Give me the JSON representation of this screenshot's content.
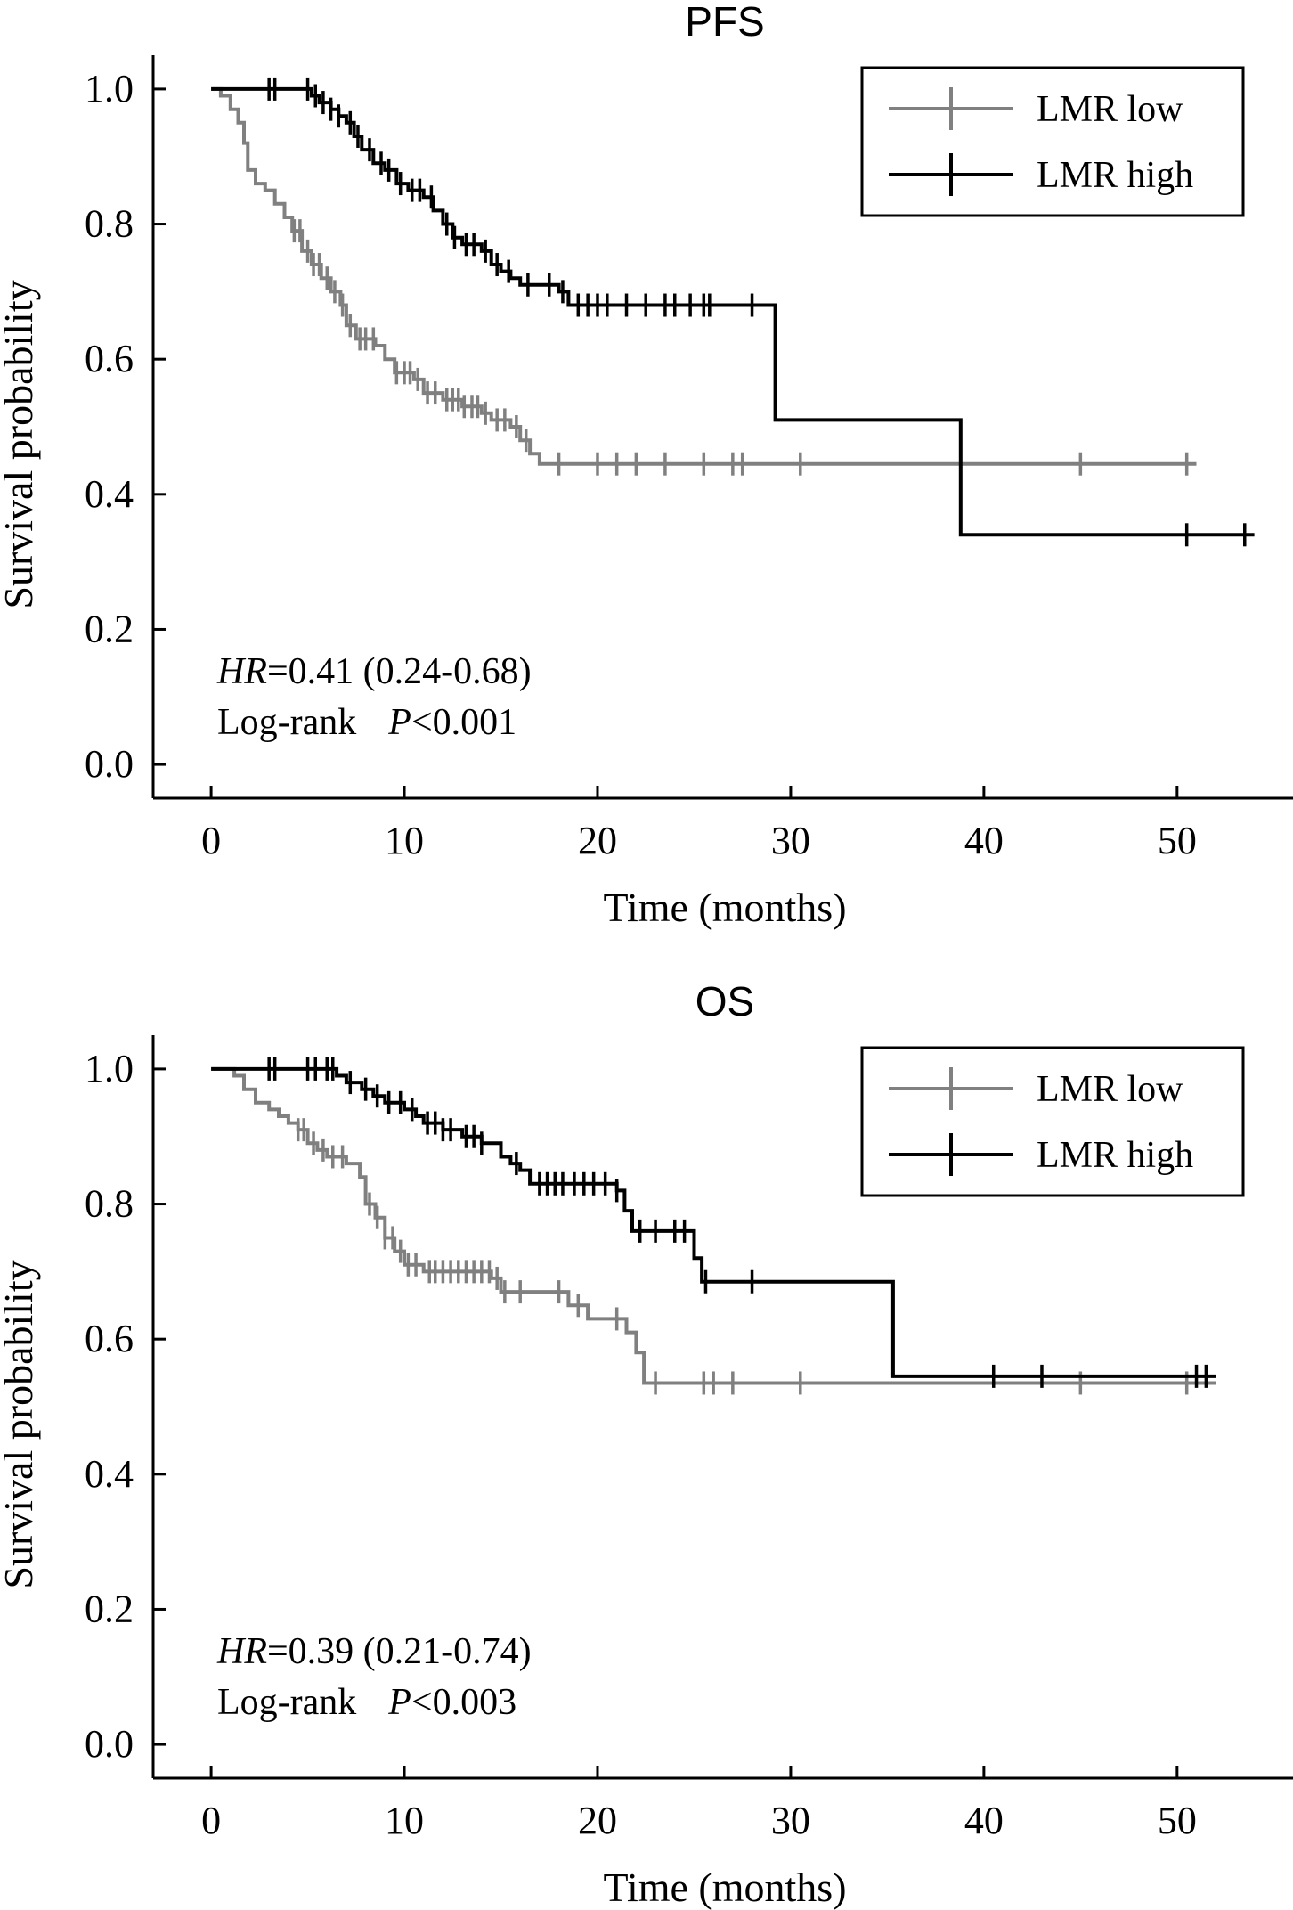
{
  "chart_data": [
    {
      "type": "line",
      "subtype": "kaplan-meier",
      "title": "PFS",
      "xlabel": "Time (months)",
      "ylabel": "Survival probability",
      "xlim": [
        -3,
        56
      ],
      "ylim": [
        -0.05,
        1.05
      ],
      "xticks": [
        "0",
        "10",
        "20",
        "30",
        "40",
        "50"
      ],
      "yticks": [
        "0.0",
        "0.2",
        "0.4",
        "0.6",
        "0.8",
        "1.0"
      ],
      "legend": {
        "position": "top-right",
        "entries": [
          "LMR low",
          "LMR high"
        ]
      },
      "annotation": {
        "hr_label": "HR",
        "hr_value": "=0.41 (0.24-0.68)",
        "logrank_label": "Log-rank",
        "p_label": "P",
        "p_value": "<0.001"
      },
      "series": [
        {
          "name": "LMR low",
          "color": "#808080",
          "steps": [
            [
              0,
              1.0
            ],
            [
              0.5,
              0.99
            ],
            [
              1,
              0.97
            ],
            [
              1.4,
              0.95
            ],
            [
              1.7,
              0.92
            ],
            [
              1.9,
              0.88
            ],
            [
              2.3,
              0.86
            ],
            [
              2.8,
              0.85
            ],
            [
              3.3,
              0.83
            ],
            [
              3.8,
              0.81
            ],
            [
              4.2,
              0.79
            ],
            [
              4.7,
              0.76
            ],
            [
              5.2,
              0.74
            ],
            [
              5.7,
              0.72
            ],
            [
              6.2,
              0.7
            ],
            [
              6.7,
              0.68
            ],
            [
              7.0,
              0.65
            ],
            [
              7.5,
              0.63
            ],
            [
              8.5,
              0.62
            ],
            [
              9.0,
              0.6
            ],
            [
              9.5,
              0.58
            ],
            [
              10.5,
              0.57
            ],
            [
              11.0,
              0.55
            ],
            [
              12.0,
              0.54
            ],
            [
              13.0,
              0.53
            ],
            [
              14.0,
              0.52
            ],
            [
              14.5,
              0.51
            ],
            [
              15.5,
              0.5
            ],
            [
              16.0,
              0.48
            ],
            [
              16.5,
              0.46
            ],
            [
              17.0,
              0.445
            ],
            [
              51,
              0.445
            ]
          ],
          "censor": [
            4.3,
            4.6,
            5.0,
            5.3,
            5.6,
            6.0,
            6.4,
            6.8,
            7.2,
            7.7,
            8.0,
            8.4,
            9.6,
            10.0,
            10.3,
            10.7,
            11.2,
            11.6,
            12.2,
            12.5,
            12.8,
            13.1,
            13.5,
            13.8,
            14.2,
            14.8,
            15.2,
            15.8,
            16.3,
            18.0,
            20.0,
            21.0,
            22.0,
            23.5,
            25.5,
            27.0,
            27.5,
            30.5,
            45.0,
            50.5
          ]
        },
        {
          "name": "LMR high",
          "color": "#000000",
          "steps": [
            [
              0,
              1.0
            ],
            [
              5.2,
              0.99
            ],
            [
              5.6,
              0.98
            ],
            [
              6.2,
              0.97
            ],
            [
              6.6,
              0.96
            ],
            [
              7.0,
              0.95
            ],
            [
              7.4,
              0.93
            ],
            [
              7.8,
              0.91
            ],
            [
              8.4,
              0.89
            ],
            [
              9.0,
              0.88
            ],
            [
              9.6,
              0.86
            ],
            [
              10.2,
              0.85
            ],
            [
              11.0,
              0.84
            ],
            [
              11.5,
              0.82
            ],
            [
              12.0,
              0.8
            ],
            [
              12.5,
              0.78
            ],
            [
              13.0,
              0.77
            ],
            [
              14.0,
              0.76
            ],
            [
              14.5,
              0.74
            ],
            [
              15.0,
              0.73
            ],
            [
              15.5,
              0.72
            ],
            [
              16.0,
              0.71
            ],
            [
              18.0,
              0.7
            ],
            [
              18.5,
              0.68
            ],
            [
              29.2,
              0.68
            ],
            [
              29.2,
              0.51
            ],
            [
              38.8,
              0.51
            ],
            [
              38.8,
              0.34
            ],
            [
              54,
              0.34
            ]
          ],
          "censor": [
            3.0,
            3.3,
            5.0,
            5.4,
            5.8,
            6.2,
            6.6,
            7.2,
            7.6,
            8.2,
            8.8,
            9.2,
            9.8,
            10.4,
            10.8,
            11.4,
            12.2,
            12.6,
            13.2,
            13.6,
            14.2,
            14.8,
            15.4,
            16.4,
            17.5,
            18.2,
            19.0,
            19.5,
            20.0,
            20.5,
            21.5,
            22.5,
            23.5,
            24.0,
            24.8,
            25.5,
            25.8,
            28.0,
            50.5,
            53.5
          ]
        }
      ]
    },
    {
      "type": "line",
      "subtype": "kaplan-meier",
      "title": "OS",
      "xlabel": "Time (months)",
      "ylabel": "Survival probability",
      "xlim": [
        -3,
        56
      ],
      "ylim": [
        -0.05,
        1.05
      ],
      "xticks": [
        "0",
        "10",
        "20",
        "30",
        "40",
        "50"
      ],
      "yticks": [
        "0.0",
        "0.2",
        "0.4",
        "0.6",
        "0.8",
        "1.0"
      ],
      "legend": {
        "position": "top-right",
        "entries": [
          "LMR low",
          "LMR high"
        ]
      },
      "annotation": {
        "hr_label": "HR",
        "hr_value": "=0.39 (0.21-0.74)",
        "logrank_label": "Log-rank",
        "p_label": "P",
        "p_value": "<0.003"
      },
      "series": [
        {
          "name": "LMR low",
          "color": "#808080",
          "steps": [
            [
              0,
              1.0
            ],
            [
              1.2,
              0.99
            ],
            [
              1.7,
              0.97
            ],
            [
              2.3,
              0.95
            ],
            [
              3.0,
              0.94
            ],
            [
              3.5,
              0.93
            ],
            [
              4.0,
              0.92
            ],
            [
              4.5,
              0.91
            ],
            [
              5.0,
              0.89
            ],
            [
              5.5,
              0.88
            ],
            [
              6.0,
              0.87
            ],
            [
              7.0,
              0.86
            ],
            [
              7.7,
              0.84
            ],
            [
              8.0,
              0.8
            ],
            [
              8.5,
              0.78
            ],
            [
              9.0,
              0.75
            ],
            [
              9.5,
              0.73
            ],
            [
              10.0,
              0.71
            ],
            [
              11.0,
              0.7
            ],
            [
              14.5,
              0.69
            ],
            [
              15.0,
              0.67
            ],
            [
              18.5,
              0.65
            ],
            [
              19.5,
              0.63
            ],
            [
              21.5,
              0.61
            ],
            [
              22.0,
              0.58
            ],
            [
              22.4,
              0.535
            ],
            [
              52,
              0.535
            ]
          ],
          "censor": [
            4.5,
            4.8,
            5.3,
            5.8,
            6.3,
            6.8,
            8.2,
            8.6,
            9.0,
            9.4,
            9.8,
            10.2,
            10.6,
            11.3,
            11.6,
            12.0,
            12.4,
            12.8,
            13.2,
            13.6,
            14.0,
            14.4,
            14.8,
            15.2,
            16.0,
            18.0,
            19.0,
            21.0,
            23.0,
            25.5,
            26.0,
            27.0,
            30.5,
            45.0,
            50.5
          ]
        },
        {
          "name": "LMR high",
          "color": "#000000",
          "steps": [
            [
              0,
              1.0
            ],
            [
              6.5,
              0.99
            ],
            [
              7.0,
              0.98
            ],
            [
              7.8,
              0.97
            ],
            [
              8.4,
              0.96
            ],
            [
              9.0,
              0.95
            ],
            [
              10.0,
              0.94
            ],
            [
              10.6,
              0.93
            ],
            [
              11.0,
              0.92
            ],
            [
              12.0,
              0.91
            ],
            [
              13.0,
              0.9
            ],
            [
              14.0,
              0.89
            ],
            [
              15.0,
              0.87
            ],
            [
              15.5,
              0.86
            ],
            [
              16.0,
              0.85
            ],
            [
              16.5,
              0.83
            ],
            [
              21.0,
              0.82
            ],
            [
              21.4,
              0.79
            ],
            [
              21.8,
              0.76
            ],
            [
              25.0,
              0.72
            ],
            [
              25.4,
              0.685
            ],
            [
              35.3,
              0.685
            ],
            [
              35.3,
              0.545
            ],
            [
              52,
              0.545
            ]
          ],
          "censor": [
            3.0,
            3.3,
            5.0,
            5.4,
            6.0,
            6.3,
            7.2,
            8.0,
            8.6,
            9.2,
            9.8,
            10.4,
            11.2,
            11.6,
            12.0,
            12.4,
            13.2,
            13.6,
            14.0,
            15.8,
            17.0,
            17.4,
            17.8,
            18.2,
            18.8,
            19.3,
            19.8,
            20.4,
            21.0,
            22.2,
            23.0,
            24.0,
            24.5,
            25.6,
            28.0,
            40.5,
            43.0,
            51.0,
            51.5
          ]
        }
      ]
    }
  ]
}
